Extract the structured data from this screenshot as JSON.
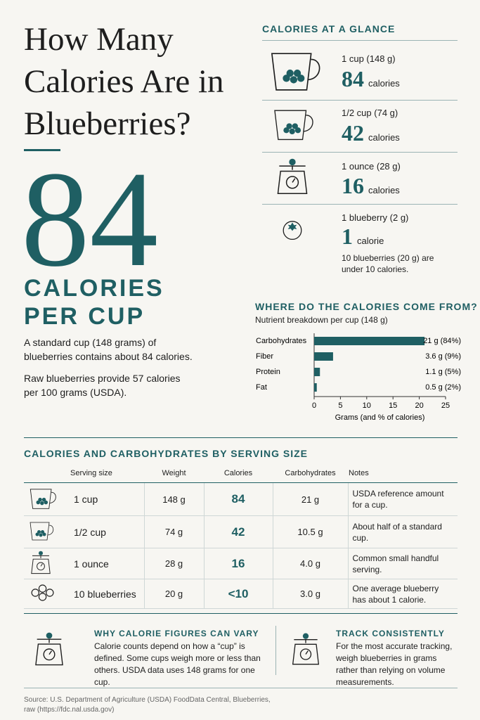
{
  "header": {
    "title": "How Many Calories Are in Blueberries?"
  },
  "hero": {
    "number": "84",
    "label": "CALORIES PER CUP",
    "text1": "A standard cup (148 grams) of blueberries contains about 84 calories.",
    "text2": "Raw blueberries provide 57 calories per 100 grams (USDA)."
  },
  "glance": {
    "title": "CALORIES AT A GLANCE",
    "items": [
      {
        "serving": "1 cup (148 g)",
        "number": "84",
        "unit": "calories"
      },
      {
        "serving": "1/2 cup (74 g)",
        "number": "42",
        "unit": "calories"
      },
      {
        "serving": "1 ounce (28 g)",
        "number": "16",
        "unit": "calories"
      },
      {
        "serving": "1 blueberry (2 g)",
        "number": "1",
        "unit": "calorie",
        "note": "10 blueberries (20 g) are under 10 calories."
      }
    ]
  },
  "chart_data": {
    "type": "bar",
    "orientation": "horizontal",
    "title": "WHERE DO THE CALORIES COME FROM?",
    "subtitle": "Nutrient breakdown per cup (148 g)",
    "categories": [
      "Carbohydrates",
      "Fiber",
      "Protein",
      "Fat"
    ],
    "values": [
      21,
      3.6,
      1.1,
      0.5
    ],
    "value_labels": [
      "21 g (84%)",
      "3.6 g (9%)",
      "1.1 g (5%)",
      "0.5 g (2%)"
    ],
    "color": "#1f5f63",
    "xlim": [
      0,
      25
    ],
    "xticks": [
      0,
      5,
      10,
      15,
      20,
      25
    ],
    "xlabel": "Grams (and % of calories)"
  },
  "table": {
    "title": "CALORIES AND CARBOHYDRATES BY SERVING SIZE",
    "columns": [
      "Serving size",
      "Weight",
      "Calories",
      "Carbohydrates",
      "Notes"
    ],
    "rows": [
      [
        "1 cup",
        "148 g",
        "84",
        "21 g",
        "USDA reference amount for a cup."
      ],
      [
        "1/2 cup",
        "74 g",
        "42",
        "10.5 g",
        "About half of a standard cup."
      ],
      [
        "1 ounce",
        "28 g",
        "16",
        "4.0 g",
        "Common small handful serving."
      ],
      [
        "10 blueberries",
        "20 g",
        "<10",
        "3.0 g",
        "One average blueberry has about 1 calorie."
      ]
    ]
  },
  "notes": [
    {
      "title": "WHY CALORIE FIGURES CAN VARY",
      "text": "Calorie counts depend on how a “cup” is defined. Some cups weigh more or less than others. USDA data uses 148 grams for one cup."
    },
    {
      "title": "TRACK CONSISTENTLY",
      "text": "For the most accurate tracking, weigh blueberries in grams rather than relying on volume measurements."
    }
  ],
  "source": "Source: U.S. Department of Agriculture (USDA) FoodData Central, Blueberries, raw (https://fdc.nal.usda.gov)"
}
